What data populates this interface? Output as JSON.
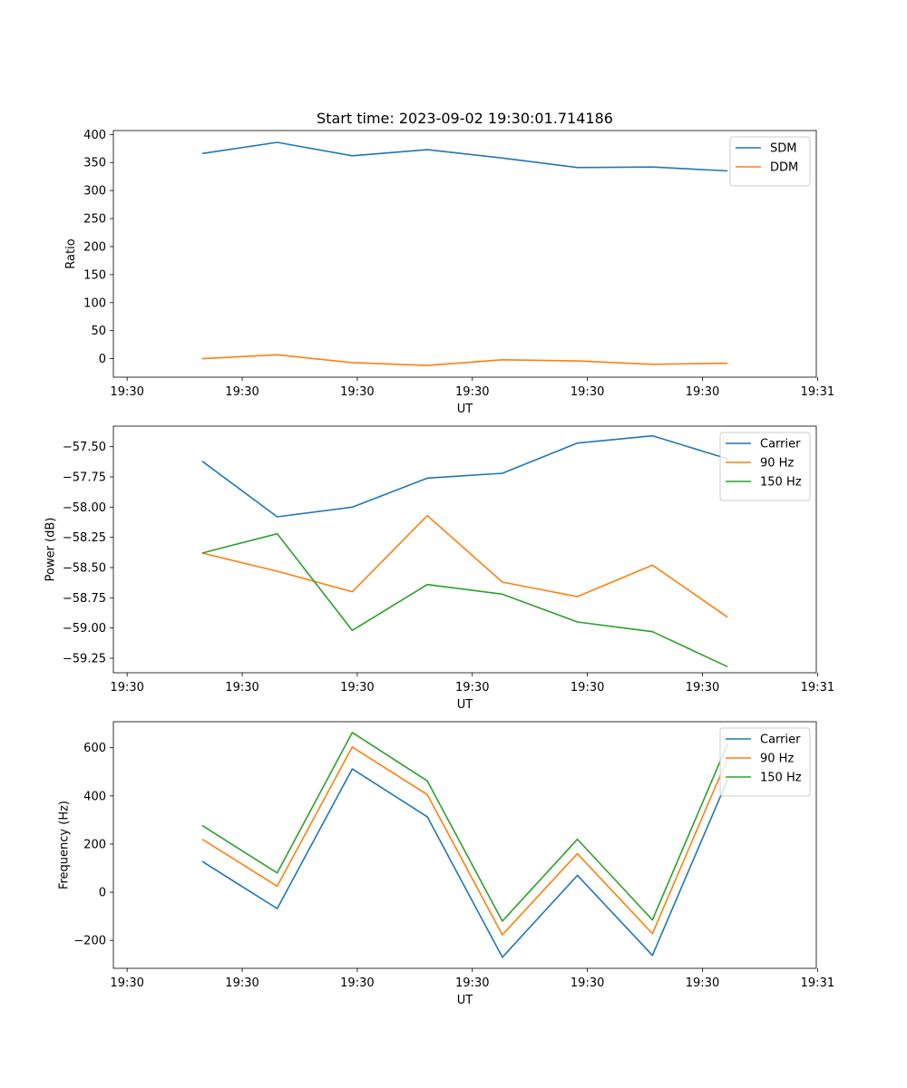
{
  "figure": {
    "title": "Start time: 2023-09-02 19:30:01.714186"
  },
  "chart_data": [
    {
      "type": "line",
      "xlabel": "UT",
      "ylabel": "Ratio",
      "x": [
        0.6,
        1.2,
        1.8,
        2.4,
        3.0,
        3.6,
        4.2,
        4.8
      ],
      "xlim": [
        -0.11,
        5.51
      ],
      "xticks": [
        0,
        0.92,
        1.84,
        2.76,
        3.68,
        4.6,
        5.52
      ],
      "xtick_labels": [
        "19:30",
        "19:30",
        "19:30",
        "19:30",
        "19:30",
        "19:30",
        "19:31"
      ],
      "ylim": [
        -33,
        407
      ],
      "yticks": [
        0,
        50,
        100,
        150,
        200,
        250,
        300,
        350,
        400
      ],
      "ytick_labels": [
        "0",
        "50",
        "100",
        "150",
        "200",
        "250",
        "300",
        "350",
        "400"
      ],
      "legend": "top-right",
      "series": [
        {
          "name": "SDM",
          "color": "#1f77b4",
          "values": [
            366,
            386,
            362,
            373,
            358,
            341,
            342,
            335
          ]
        },
        {
          "name": "DDM",
          "color": "#ff7f0e",
          "values": [
            0,
            7,
            -7,
            -12,
            -2,
            -4,
            -10,
            -8
          ]
        }
      ]
    },
    {
      "type": "line",
      "xlabel": "UT",
      "ylabel": "Power (dB)",
      "x": [
        0.6,
        1.2,
        1.8,
        2.4,
        3.0,
        3.6,
        4.2,
        4.8
      ],
      "xlim": [
        -0.11,
        5.51
      ],
      "xticks": [
        0,
        0.92,
        1.84,
        2.76,
        3.68,
        4.6,
        5.52
      ],
      "xtick_labels": [
        "19:30",
        "19:30",
        "19:30",
        "19:30",
        "19:30",
        "19:30",
        "19:31"
      ],
      "ylim": [
        -59.37,
        -57.33
      ],
      "yticks": [
        -57.5,
        -57.75,
        -58.0,
        -58.25,
        -58.5,
        -58.75,
        -59.0,
        -59.25
      ],
      "ytick_labels": [
        "−57.50",
        "−57.75",
        "−58.00",
        "−58.25",
        "−58.50",
        "−58.75",
        "−59.00",
        "−59.25"
      ],
      "legend": "top-right",
      "series": [
        {
          "name": "Carrier",
          "color": "#1f77b4",
          "values": [
            -57.62,
            -58.08,
            -58.0,
            -57.76,
            -57.72,
            -57.47,
            -57.41,
            -57.6
          ]
        },
        {
          "name": "90 Hz",
          "color": "#ff7f0e",
          "values": [
            -58.38,
            -58.53,
            -58.7,
            -58.07,
            -58.62,
            -58.74,
            -58.48,
            -58.91
          ]
        },
        {
          "name": "150 Hz",
          "color": "#2ca02c",
          "values": [
            -58.38,
            -58.22,
            -59.02,
            -58.64,
            -58.72,
            -58.95,
            -59.03,
            -59.32
          ]
        }
      ]
    },
    {
      "type": "line",
      "xlabel": "UT",
      "ylabel": "Frequency (Hz)",
      "x": [
        0.6,
        1.2,
        1.8,
        2.4,
        3.0,
        3.6,
        4.2,
        4.8
      ],
      "xlim": [
        -0.11,
        5.51
      ],
      "xticks": [
        0,
        0.92,
        1.84,
        2.76,
        3.68,
        4.6,
        5.52
      ],
      "xtick_labels": [
        "19:30",
        "19:30",
        "19:30",
        "19:30",
        "19:30",
        "19:30",
        "19:31"
      ],
      "ylim": [
        -316,
        708
      ],
      "yticks": [
        -200,
        0,
        200,
        400,
        600
      ],
      "ytick_labels": [
        "−200",
        "0",
        "200",
        "400",
        "600"
      ],
      "legend": "top-right",
      "series": [
        {
          "name": "Carrier",
          "color": "#1f77b4",
          "values": [
            128,
            -68,
            512,
            313,
            -270,
            70,
            -262,
            466
          ]
        },
        {
          "name": "90 Hz",
          "color": "#ff7f0e",
          "values": [
            220,
            25,
            603,
            405,
            -177,
            160,
            -172,
            555
          ]
        },
        {
          "name": "150 Hz",
          "color": "#2ca02c",
          "values": [
            277,
            80,
            663,
            462,
            -120,
            220,
            -115,
            615
          ]
        }
      ]
    }
  ]
}
